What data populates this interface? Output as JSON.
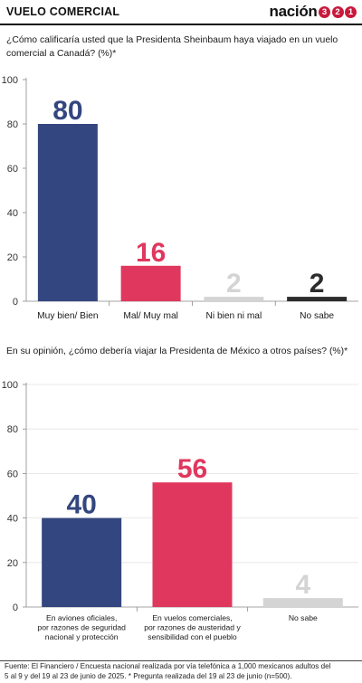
{
  "header": {
    "section": "VUELO COMERCIAL",
    "brand_word": "nación",
    "brand_digits": [
      "3",
      "2",
      "1"
    ]
  },
  "colors": {
    "navy": "#34467f",
    "pink": "#e0375e",
    "light_gray": "#d4d4d4",
    "dark": "#2c2c2c",
    "axis_text": "#333333",
    "gridline": "#e3e3e3"
  },
  "charts": [
    {
      "question": "¿Cómo calificaría usted que la Presidenta Sheinbaum haya viajado en un vuelo comercial a Canadá? (%)*"
    },
    {
      "question": "En su opinión, ¿cómo debería viajar la Presidenta de México a otros países? (%)*"
    }
  ],
  "chart_data": [
    {
      "type": "bar",
      "title": "¿Cómo calificaría usted que la Presidenta Sheinbaum haya viajado en un vuelo comercial a Canadá? (%)*",
      "categories": [
        "Muy bien/ Bien",
        "Mal/ Muy mal",
        "Ni bien ni mal",
        "No sabe"
      ],
      "values": [
        80,
        16,
        2,
        2
      ],
      "value_labels": [
        "80",
        "16",
        "2",
        "2"
      ],
      "bar_colors": [
        "#34467f",
        "#e0375e",
        "#d4d4d4",
        "#2c2c2c"
      ],
      "label_colors": [
        "#34467f",
        "#e0375e",
        "#d4d4d4",
        "#2c2c2c"
      ],
      "y_ticks": [
        "0",
        "20",
        "40",
        "60",
        "80",
        "100"
      ],
      "ylim": [
        0,
        100
      ],
      "xlabel": "",
      "ylabel": "",
      "grid": false,
      "legend": "none"
    },
    {
      "type": "bar",
      "title": "En su opinión, ¿cómo debería viajar la Presidenta de México a otros países? (%)*",
      "categories": [
        [
          "En aviones oficiales,",
          "por razones de seguridad",
          "nacional y protección"
        ],
        [
          "En vuelos comerciales,",
          "por razones de austeridad y",
          "sensibilidad con el pueblo"
        ],
        [
          "No sabe"
        ]
      ],
      "values": [
        40,
        56,
        4
      ],
      "value_labels": [
        "40",
        "56",
        "4"
      ],
      "bar_colors": [
        "#34467f",
        "#e0375e",
        "#d4d4d4"
      ],
      "label_colors": [
        "#34467f",
        "#e0375e",
        "#d4d4d4"
      ],
      "y_ticks": [
        "0",
        "20",
        "40",
        "60",
        "80",
        "100"
      ],
      "ylim": [
        0,
        100
      ],
      "xlabel": "",
      "ylabel": "",
      "grid": true,
      "legend": "none"
    }
  ],
  "footer": {
    "line1": "Fuente: El Financiero / Encuesta nacional realizada por vía telefónica a 1,000 mexicanos adultos del",
    "line2": "5 al 9 y del 19 al 23 de junio de 2025. * Pregunta realizada del 19 al 23 de junio (n=500)."
  }
}
